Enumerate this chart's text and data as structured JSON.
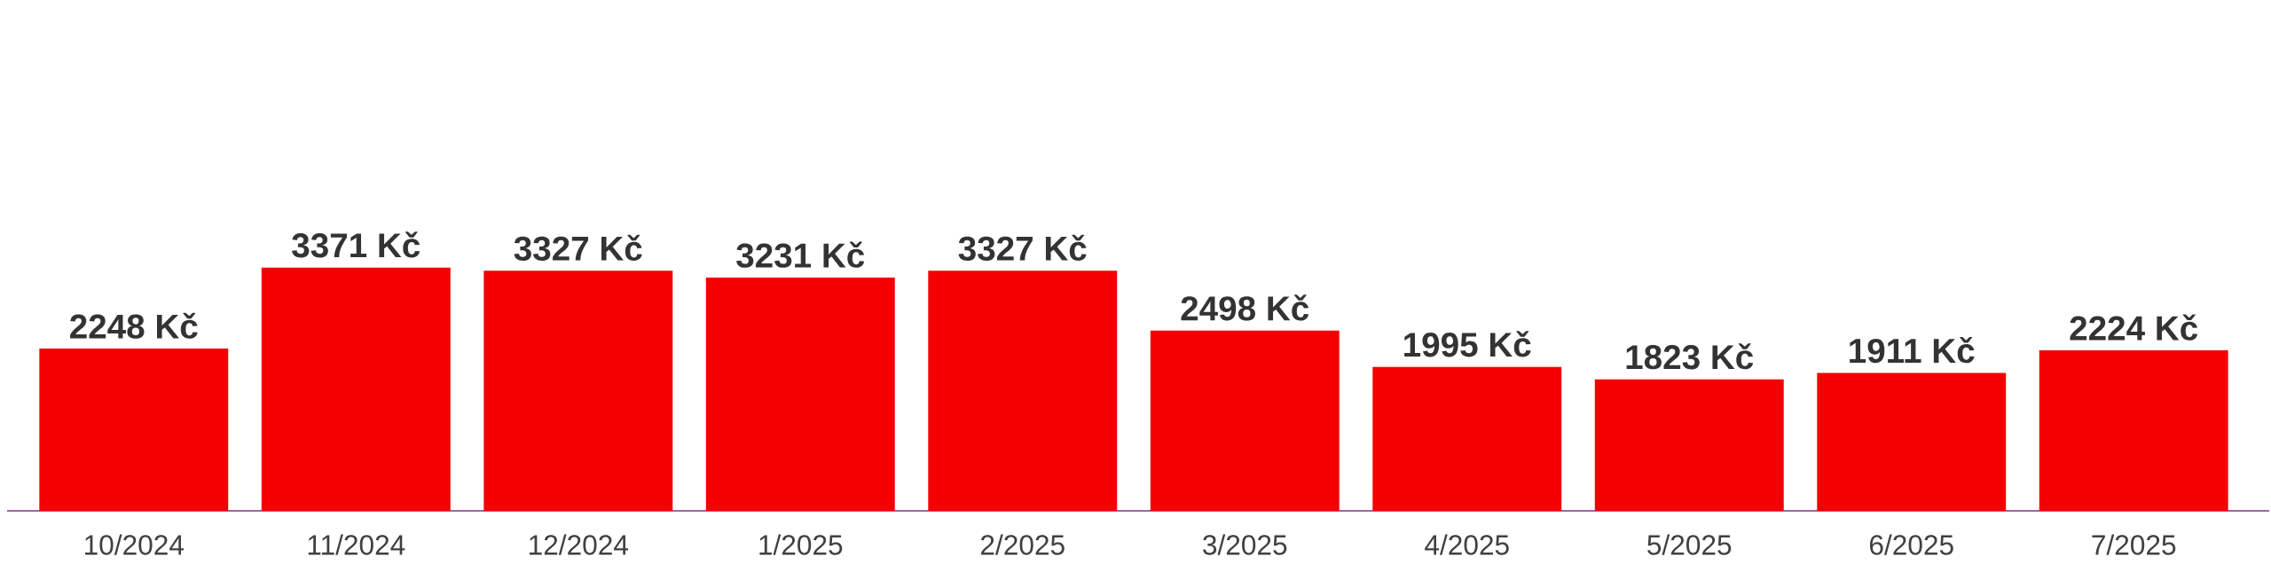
{
  "chart_data": {
    "type": "bar",
    "categories": [
      "10/2024",
      "11/2024",
      "12/2024",
      "1/2025",
      "2/2025",
      "3/2025",
      "4/2025",
      "5/2025",
      "6/2025",
      "7/2025"
    ],
    "values": [
      2248,
      3371,
      3327,
      3231,
      3327,
      2498,
      1995,
      1823,
      1911,
      2224
    ],
    "value_labels": [
      "2248 Kč",
      "3371 Kč",
      "3327 Kč",
      "3231 Kč",
      "3327 Kč",
      "2498 Kč",
      "1995 Kč",
      "1823 Kč",
      "1911 Kč",
      "2224 Kč"
    ],
    "color": "#f40000",
    "tick_labels": "x"
  }
}
